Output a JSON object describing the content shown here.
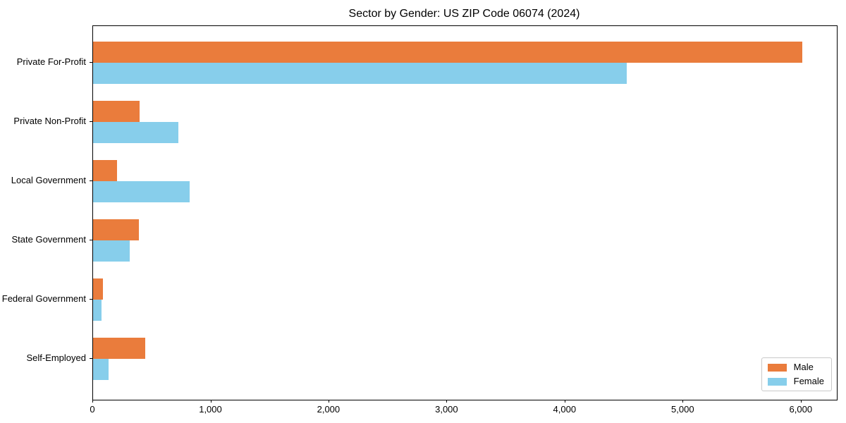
{
  "chart_data": {
    "type": "bar",
    "orientation": "horizontal",
    "title": "Sector by Gender: US ZIP Code 06074 (2024)",
    "categories": [
      "Private For-Profit",
      "Private Non-Profit",
      "Local Government",
      "State Government",
      "Federal Government",
      "Self-Employed"
    ],
    "series": [
      {
        "name": "Male",
        "color": "#EA7C3C",
        "values": [
          6010,
          395,
          200,
          385,
          85,
          440
        ]
      },
      {
        "name": "Female",
        "color": "#87CEEB",
        "values": [
          4520,
          720,
          815,
          310,
          70,
          130
        ]
      }
    ],
    "xlim": [
      0,
      6300
    ],
    "xticks": [
      0,
      1000,
      2000,
      3000,
      4000,
      5000,
      6000
    ],
    "xtick_labels": [
      "0",
      "1,000",
      "2,000",
      "3,000",
      "4,000",
      "5,000",
      "6,000"
    ],
    "ylabel": "",
    "xlabel": "",
    "grid": false,
    "legend_position": "lower right",
    "axis_color": "#000000",
    "background_color": "#ffffff"
  }
}
